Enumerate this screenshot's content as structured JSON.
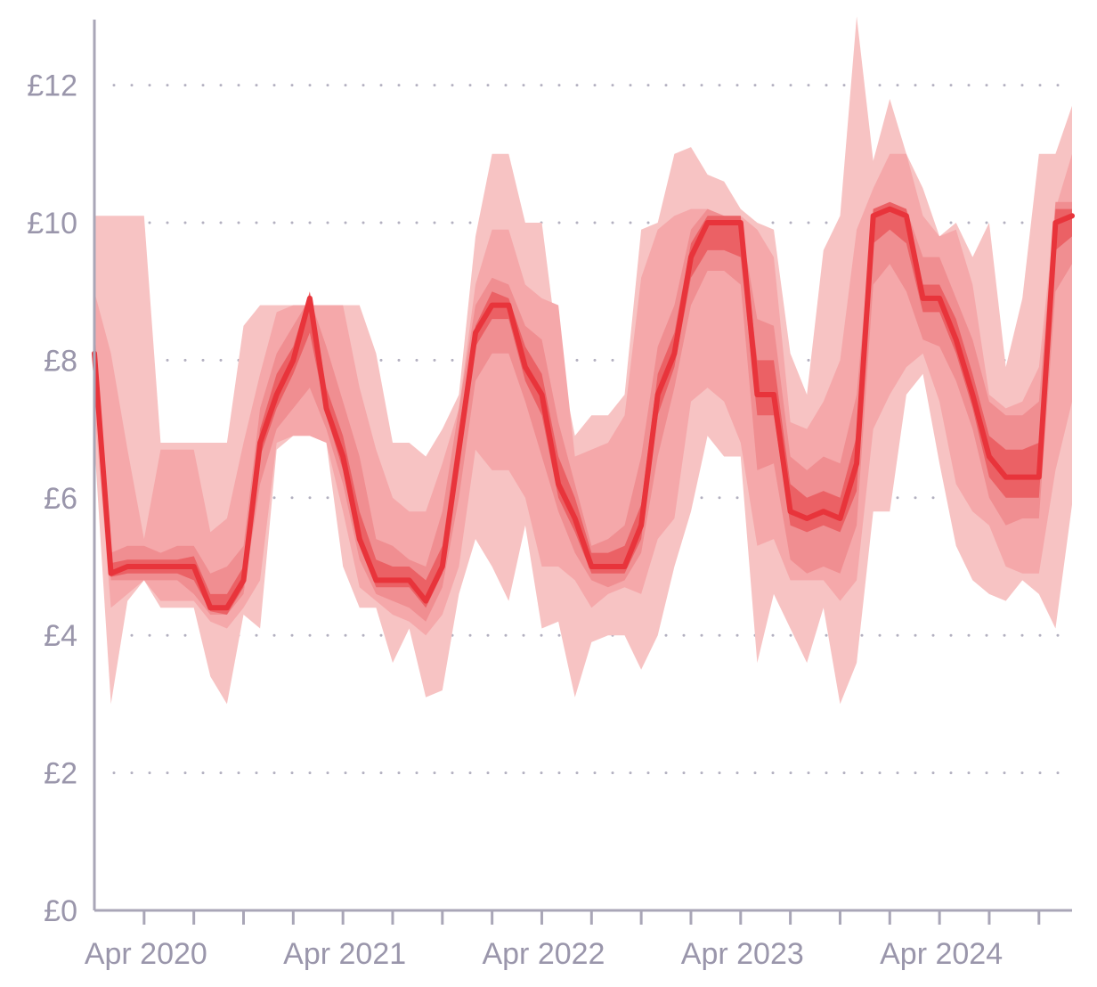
{
  "chart_data": {
    "type": "area",
    "title": "",
    "xlabel": "",
    "ylabel": "",
    "ylim": [
      0,
      13
    ],
    "xlim": [
      "2020-01",
      "2024-12"
    ],
    "y_ticks": [
      {
        "value": 0,
        "label": "£0"
      },
      {
        "value": 2,
        "label": "£2"
      },
      {
        "value": 4,
        "label": "£4"
      },
      {
        "value": 6,
        "label": "£6"
      },
      {
        "value": 8,
        "label": "£8"
      },
      {
        "value": 10,
        "label": "£10"
      },
      {
        "value": 12,
        "label": "£12"
      }
    ],
    "x_labels": [
      {
        "value": "2020-04",
        "label": "Apr 2020"
      },
      {
        "value": "2021-04",
        "label": "Apr 2021"
      },
      {
        "value": "2022-04",
        "label": "Apr 2022"
      },
      {
        "value": "2023-04",
        "label": "Apr 2023"
      },
      {
        "value": "2024-04",
        "label": "Apr 2024"
      }
    ],
    "x_minor_ticks": [
      "2020-04",
      "2020-07",
      "2020-10",
      "2021-01",
      "2021-04",
      "2021-07",
      "2021-10",
      "2022-01",
      "2022-04",
      "2022-07",
      "2022-10",
      "2023-01",
      "2023-04",
      "2023-07",
      "2023-10",
      "2024-01",
      "2024-04",
      "2024-07",
      "2024-10"
    ],
    "grid": "horizontal dotted",
    "months": [
      "2020-01",
      "2020-02",
      "2020-03",
      "2020-04",
      "2020-05",
      "2020-06",
      "2020-07",
      "2020-08",
      "2020-09",
      "2020-10",
      "2020-11",
      "2020-12",
      "2021-01",
      "2021-02",
      "2021-03",
      "2021-04",
      "2021-05",
      "2021-06",
      "2021-07",
      "2021-08",
      "2021-09",
      "2021-10",
      "2021-11",
      "2021-12",
      "2022-01",
      "2022-02",
      "2022-03",
      "2022-04",
      "2022-05",
      "2022-06",
      "2022-07",
      "2022-08",
      "2022-09",
      "2022-10",
      "2022-11",
      "2022-12",
      "2023-01",
      "2023-02",
      "2023-03",
      "2023-04",
      "2023-05",
      "2023-06",
      "2023-07",
      "2023-08",
      "2023-09",
      "2023-10",
      "2023-11",
      "2023-12",
      "2024-01",
      "2024-02",
      "2024-03",
      "2024-04",
      "2024-05",
      "2024-06",
      "2024-07",
      "2024-08",
      "2024-09",
      "2024-10",
      "2024-11",
      "2024-12"
    ],
    "median": [
      8.1,
      4.9,
      5.0,
      5.0,
      5.0,
      5.0,
      5.0,
      4.4,
      4.4,
      4.8,
      6.8,
      7.5,
      8.0,
      8.9,
      7.3,
      6.6,
      5.4,
      4.8,
      4.8,
      4.8,
      4.5,
      5.0,
      6.7,
      8.4,
      8.8,
      8.8,
      7.9,
      7.5,
      6.2,
      5.7,
      5.0,
      5.0,
      5.0,
      5.6,
      7.5,
      8.1,
      9.5,
      10.0,
      10.0,
      10.0,
      7.5,
      7.5,
      5.8,
      5.7,
      5.8,
      5.7,
      6.5,
      10.1,
      10.2,
      10.1,
      8.9,
      8.9,
      8.3,
      7.5,
      6.6,
      6.3,
      6.3,
      6.3,
      10.0,
      10.1
    ],
    "bands": [
      {
        "name": "",
        "lower": [
          6.8,
          3.0,
          4.5,
          4.8,
          4.4,
          4.4,
          4.4,
          3.4,
          3.0,
          4.3,
          4.1,
          6.7,
          6.9,
          6.9,
          6.8,
          5.0,
          4.4,
          4.4,
          3.6,
          4.1,
          3.1,
          3.2,
          4.6,
          5.4,
          5.0,
          4.5,
          5.6,
          4.1,
          4.2,
          3.1,
          3.9,
          4.0,
          4.0,
          3.5,
          4.0,
          5.0,
          5.8,
          6.9,
          6.6,
          6.6,
          3.6,
          4.6,
          4.1,
          3.6,
          4.4,
          3.0,
          3.6,
          5.8,
          5.8,
          7.5,
          7.8,
          6.5,
          5.3,
          4.8,
          4.6,
          4.5,
          4.8,
          4.6,
          4.1,
          5.9
        ],
        "upper": [
          10.1,
          10.1,
          10.1,
          10.1,
          6.8,
          6.8,
          6.8,
          6.8,
          6.8,
          8.5,
          8.8,
          8.8,
          8.8,
          8.8,
          8.8,
          8.8,
          8.8,
          8.1,
          6.8,
          6.8,
          6.6,
          7.0,
          7.5,
          9.8,
          11.0,
          11.0,
          10.0,
          10.0,
          8.1,
          6.9,
          7.2,
          7.2,
          7.5,
          9.9,
          10.0,
          11.0,
          11.1,
          10.7,
          10.6,
          10.2,
          10.0,
          9.9,
          8.1,
          7.5,
          9.6,
          10.1,
          13.0,
          10.9,
          11.8,
          11.0,
          10.5,
          9.8,
          10.0,
          9.5,
          10.0,
          7.9,
          8.9,
          11.0,
          11.0,
          11.7
        ]
      },
      {
        "name": "",
        "lower": [
          7.3,
          4.4,
          4.6,
          4.8,
          4.5,
          4.5,
          4.5,
          4.2,
          4.1,
          4.4,
          4.8,
          6.8,
          6.9,
          6.9,
          6.8,
          5.8,
          4.7,
          4.5,
          4.3,
          4.2,
          4.0,
          4.3,
          5.0,
          6.7,
          6.4,
          6.4,
          6.0,
          5.0,
          5.0,
          4.8,
          4.4,
          4.6,
          4.7,
          4.6,
          5.4,
          5.7,
          7.4,
          7.6,
          7.4,
          6.8,
          5.3,
          5.4,
          4.8,
          4.8,
          4.8,
          4.5,
          4.8,
          7.0,
          7.5,
          7.9,
          8.1,
          7.4,
          6.2,
          5.8,
          5.6,
          5.0,
          4.9,
          4.9,
          6.4,
          7.4
        ],
        "upper": [
          9.0,
          8.1,
          6.7,
          5.4,
          6.7,
          6.7,
          6.7,
          5.5,
          5.7,
          6.8,
          7.8,
          8.7,
          8.8,
          8.8,
          8.8,
          8.8,
          7.6,
          6.7,
          6.0,
          5.8,
          5.8,
          6.5,
          7.3,
          9.1,
          9.9,
          9.9,
          9.1,
          8.9,
          8.8,
          6.6,
          6.7,
          6.8,
          7.2,
          9.2,
          9.9,
          10.1,
          10.2,
          10.2,
          10.1,
          10.1,
          9.9,
          9.5,
          7.1,
          7.0,
          7.4,
          8.0,
          9.9,
          10.5,
          11.0,
          11.0,
          10.1,
          9.8,
          9.9,
          9.1,
          7.5,
          7.3,
          7.4,
          7.9,
          10.2,
          11.0
        ]
      },
      {
        "name": "",
        "lower": [
          7.8,
          4.8,
          4.8,
          4.8,
          4.8,
          4.8,
          4.6,
          4.3,
          4.3,
          4.6,
          6.2,
          7.0,
          7.3,
          7.6,
          7.0,
          6.2,
          5.1,
          4.6,
          4.5,
          4.4,
          4.2,
          4.7,
          6.0,
          7.7,
          8.1,
          8.1,
          7.4,
          6.6,
          5.8,
          5.2,
          4.8,
          4.7,
          4.8,
          5.2,
          6.6,
          7.6,
          8.8,
          9.3,
          9.3,
          9.1,
          6.4,
          6.5,
          5.1,
          4.9,
          5.0,
          4.9,
          5.6,
          9.1,
          9.4,
          9.0,
          8.3,
          8.2,
          7.7,
          7.0,
          6.0,
          5.6,
          5.7,
          5.7,
          9.0,
          9.4
        ],
        "upper": [
          8.5,
          5.2,
          5.3,
          5.3,
          5.2,
          5.3,
          5.3,
          4.9,
          5.0,
          5.3,
          7.3,
          8.1,
          8.5,
          8.9,
          8.2,
          7.4,
          6.6,
          5.4,
          5.3,
          5.1,
          5.0,
          5.8,
          7.3,
          8.8,
          9.2,
          9.1,
          8.5,
          8.3,
          7.1,
          6.2,
          5.3,
          5.4,
          5.6,
          6.6,
          8.2,
          8.8,
          9.9,
          10.2,
          10.1,
          10.0,
          8.6,
          8.5,
          6.6,
          6.4,
          6.6,
          6.5,
          7.5,
          10.2,
          10.3,
          10.2,
          9.5,
          9.5,
          8.9,
          8.3,
          7.4,
          7.2,
          7.2,
          7.4,
          10.3,
          10.3
        ]
      },
      {
        "name": "",
        "lower": [
          7.9,
          4.85,
          4.9,
          4.9,
          4.9,
          4.9,
          4.8,
          4.35,
          4.3,
          4.7,
          6.6,
          7.3,
          7.8,
          8.4,
          7.2,
          6.4,
          5.3,
          4.7,
          4.7,
          4.7,
          4.4,
          4.9,
          6.5,
          8.2,
          8.6,
          8.6,
          7.7,
          7.2,
          6.0,
          5.5,
          4.9,
          4.9,
          4.9,
          5.4,
          7.2,
          7.9,
          9.2,
          9.6,
          9.6,
          9.5,
          7.2,
          7.2,
          5.6,
          5.5,
          5.6,
          5.5,
          6.1,
          9.7,
          9.9,
          9.7,
          8.7,
          8.7,
          8.1,
          7.3,
          6.3,
          6.0,
          6.0,
          6.0,
          9.6,
          9.8
        ],
        "upper": [
          8.3,
          5.05,
          5.1,
          5.1,
          5.1,
          5.1,
          5.15,
          4.6,
          4.6,
          5.0,
          7.0,
          7.8,
          8.2,
          9.0,
          7.6,
          6.9,
          5.8,
          5.1,
          5.0,
          5.0,
          4.8,
          5.3,
          7.0,
          8.5,
          9.0,
          8.9,
          8.2,
          7.8,
          6.6,
          6.0,
          5.2,
          5.2,
          5.3,
          5.9,
          7.8,
          8.4,
          9.7,
          10.1,
          10.1,
          10.1,
          8.0,
          8.0,
          6.2,
          6.0,
          6.1,
          6.0,
          6.9,
          10.2,
          10.3,
          10.2,
          9.1,
          9.1,
          8.6,
          7.8,
          6.9,
          6.7,
          6.7,
          6.8,
          10.2,
          10.2
        ]
      }
    ],
    "colors": {
      "band_outer": "#f7c3c3",
      "band_second": "#f5a8aa",
      "band_third": "#f08e91",
      "band_inner": "#eb6165",
      "median_line": "#e8343b",
      "axis": "#a9a6b7",
      "grid": "#b3b0c0",
      "tick_text": "#9a96ab"
    }
  }
}
